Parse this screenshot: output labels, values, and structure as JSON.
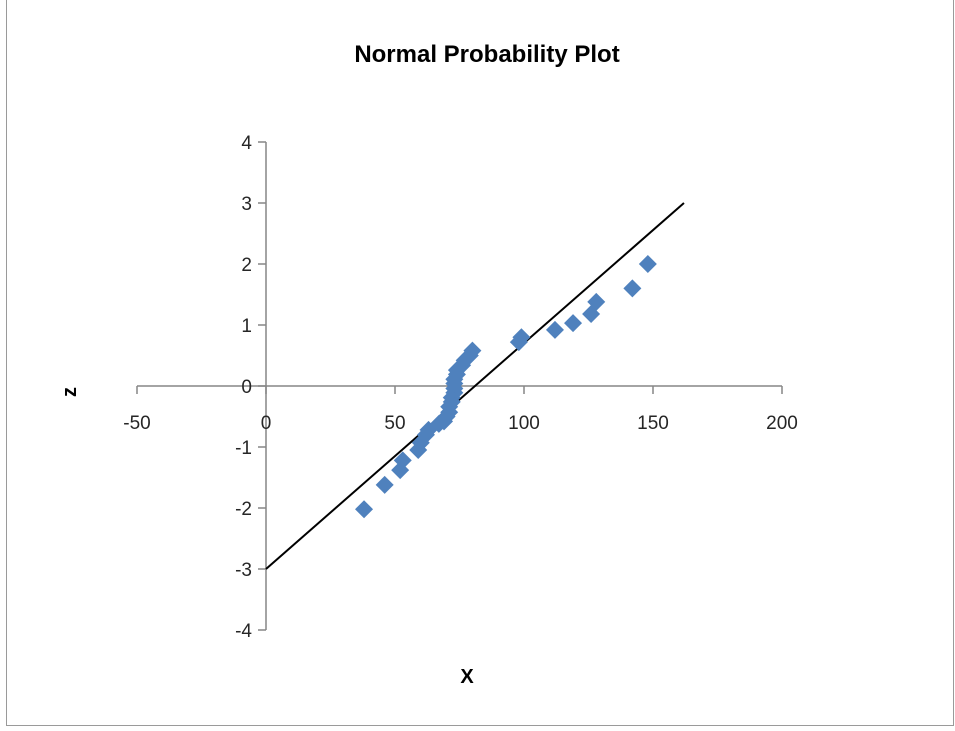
{
  "chart_data": {
    "type": "scatter",
    "title": "Normal Probability Plot",
    "xlabel": "X",
    "ylabel": "z",
    "xlim": [
      -50,
      200
    ],
    "ylim": [
      -4,
      4
    ],
    "x_ticks": [
      -50,
      0,
      50,
      100,
      150,
      200
    ],
    "y_ticks": [
      -4,
      -3,
      -2,
      -1,
      0,
      1,
      2,
      3,
      4
    ],
    "grid": false,
    "legend": "none",
    "series": [
      {
        "type": "scatter",
        "marker": "diamond",
        "color": "#4f81bd",
        "points": [
          {
            "x": 38,
            "y": -2.02
          },
          {
            "x": 46,
            "y": -1.62
          },
          {
            "x": 52,
            "y": -1.38
          },
          {
            "x": 53,
            "y": -1.22
          },
          {
            "x": 59,
            "y": -1.05
          },
          {
            "x": 60,
            "y": -0.93
          },
          {
            "x": 62,
            "y": -0.8
          },
          {
            "x": 63,
            "y": -0.72
          },
          {
            "x": 67,
            "y": -0.62
          },
          {
            "x": 69,
            "y": -0.58
          },
          {
            "x": 70,
            "y": -0.5
          },
          {
            "x": 71,
            "y": -0.43
          },
          {
            "x": 71,
            "y": -0.34
          },
          {
            "x": 72,
            "y": -0.26
          },
          {
            "x": 72,
            "y": -0.19
          },
          {
            "x": 73,
            "y": -0.11
          },
          {
            "x": 73,
            "y": -0.04
          },
          {
            "x": 73,
            "y": 0.04
          },
          {
            "x": 73,
            "y": 0.11
          },
          {
            "x": 74,
            "y": 0.19
          },
          {
            "x": 74,
            "y": 0.26
          },
          {
            "x": 76,
            "y": 0.34
          },
          {
            "x": 77,
            "y": 0.42
          },
          {
            "x": 79,
            "y": 0.5
          },
          {
            "x": 80,
            "y": 0.58
          },
          {
            "x": 98,
            "y": 0.72
          },
          {
            "x": 99,
            "y": 0.8
          },
          {
            "x": 112,
            "y": 0.92
          },
          {
            "x": 119,
            "y": 1.03
          },
          {
            "x": 126,
            "y": 1.18
          },
          {
            "x": 128,
            "y": 1.38
          },
          {
            "x": 142,
            "y": 1.6
          },
          {
            "x": 148,
            "y": 2.0
          }
        ]
      },
      {
        "type": "line",
        "color": "#000000",
        "points": [
          {
            "x": 0,
            "y": -3.0
          },
          {
            "x": 162,
            "y": 3.0
          }
        ]
      }
    ]
  }
}
